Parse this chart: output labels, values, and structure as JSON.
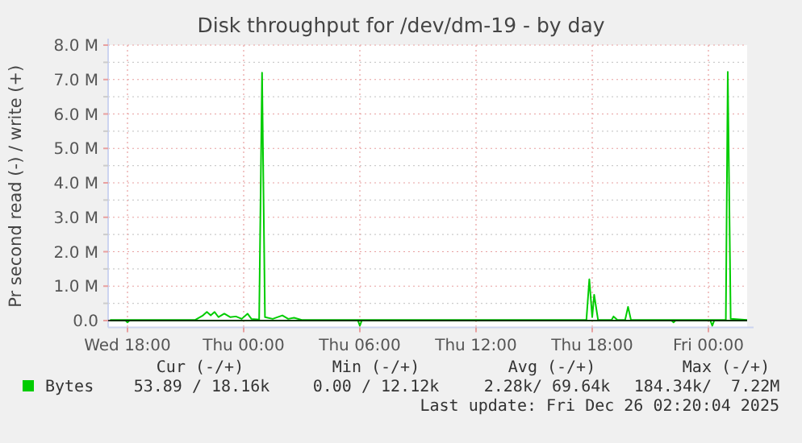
{
  "chart_data": {
    "type": "line",
    "title": "Disk throughput for /dev/dm-19 - by day",
    "ylabel": "Pr second read (-) / write (+)",
    "xlim": [
      "2025-12-24T17:00",
      "2025-12-26T02:00"
    ],
    "xticks": [
      {
        "value": "2025-12-24T18:00",
        "label": "Wed 18:00"
      },
      {
        "value": "2025-12-25T00:00",
        "label": "Thu 00:00"
      },
      {
        "value": "2025-12-25T06:00",
        "label": "Thu 06:00"
      },
      {
        "value": "2025-12-25T12:00",
        "label": "Thu 12:00"
      },
      {
        "value": "2025-12-25T18:00",
        "label": "Thu 18:00"
      },
      {
        "value": "2025-12-26T00:00",
        "label": "Fri 00:00"
      }
    ],
    "ylim": [
      -0.2,
      8.0
    ],
    "yticks": [
      {
        "value": 0,
        "label": "0.0"
      },
      {
        "value": 0.5,
        "label": null
      },
      {
        "value": 1,
        "label": "1.0 M"
      },
      {
        "value": 1.5,
        "label": null
      },
      {
        "value": 2,
        "label": "2.0 M"
      },
      {
        "value": 2.5,
        "label": null
      },
      {
        "value": 3,
        "label": "3.0 M"
      },
      {
        "value": 3.5,
        "label": null
      },
      {
        "value": 4,
        "label": "4.0 M"
      },
      {
        "value": 4.5,
        "label": null
      },
      {
        "value": 5,
        "label": "5.0 M"
      },
      {
        "value": 5.5,
        "label": null
      },
      {
        "value": 6,
        "label": "6.0 M"
      },
      {
        "value": 6.5,
        "label": null
      },
      {
        "value": 7,
        "label": "7.0 M"
      },
      {
        "value": 7.5,
        "label": null
      },
      {
        "value": 8,
        "label": "8.0 M"
      }
    ],
    "grid": true,
    "legend": "bottom",
    "marker": "none",
    "line_style": "solid",
    "series": [
      {
        "name": "Bytes",
        "color": "#00cc00",
        "x": [
          "2025-12-24T17:06",
          "2025-12-24T21:30",
          "2025-12-24T21:54",
          "2025-12-24T22:06",
          "2025-12-24T22:18",
          "2025-12-24T22:30",
          "2025-12-24T22:42",
          "2025-12-24T23:00",
          "2025-12-24T23:18",
          "2025-12-24T23:36",
          "2025-12-24T23:54",
          "2025-12-25T00:12",
          "2025-12-25T00:24",
          "2025-12-25T00:48",
          "2025-12-25T00:57",
          "2025-12-25T01:06",
          "2025-12-25T01:30",
          "2025-12-25T02:00",
          "2025-12-25T02:18",
          "2025-12-25T02:36",
          "2025-12-25T03:00",
          "2025-12-25T17:42",
          "2025-12-25T17:51",
          "2025-12-25T18:00",
          "2025-12-25T18:06",
          "2025-12-25T18:18",
          "2025-12-25T19:00",
          "2025-12-25T19:06",
          "2025-12-25T19:18",
          "2025-12-25T19:42",
          "2025-12-25T19:51",
          "2025-12-25T20:00",
          "2025-12-26T00:54",
          "2025-12-26T01:00",
          "2025-12-26T01:09",
          "2025-12-26T02:00"
        ],
        "values": [
          0.02,
          0.02,
          0.15,
          0.25,
          0.15,
          0.25,
          0.1,
          0.2,
          0.1,
          0.12,
          0.05,
          0.2,
          0.05,
          0.03,
          7.2,
          0.1,
          0.05,
          0.15,
          0.05,
          0.08,
          0.02,
          0.02,
          1.2,
          0.1,
          0.75,
          0.02,
          0.02,
          0.12,
          0.02,
          0.02,
          0.4,
          0.02,
          0.02,
          7.22,
          0.05,
          0.02
        ]
      },
      {
        "color": "#00cc00",
        "x": [
          "2025-12-24T17:06",
          "2025-12-24T17:54",
          "2025-12-24T18:00",
          "2025-12-24T18:06",
          "2025-12-25T05:54",
          "2025-12-25T06:00",
          "2025-12-25T06:06",
          "2025-12-25T22:06",
          "2025-12-25T22:12",
          "2025-12-25T22:18",
          "2025-12-26T00:06",
          "2025-12-26T00:12",
          "2025-12-26T00:18",
          "2025-12-26T02:00"
        ],
        "values": [
          0,
          0,
          -0.05,
          0,
          0,
          -0.15,
          0,
          0,
          -0.05,
          0,
          0,
          -0.15,
          0,
          0
        ]
      }
    ],
    "annotations": [
      "Cur (-/+)",
      "Min (-/+)",
      "Avg (-/+)",
      "Max (-/+)",
      "53.89 / 18.16k",
      "0.00 / 12.12k",
      "2.28k/ 69.64k",
      "184.34k/  7.22M",
      "Last update: Fri Dec 26 02:20:04 2025"
    ]
  }
}
